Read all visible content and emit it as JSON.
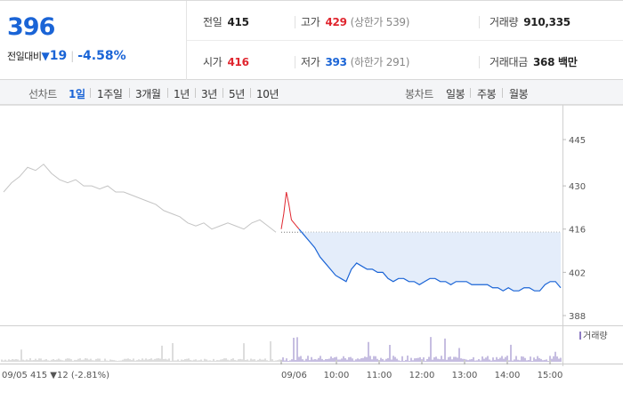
{
  "quote": {
    "price": "396",
    "change_label": "전일대비",
    "change_symbol": "▼",
    "change_amount": "19",
    "change_percent": "-4.58%"
  },
  "info": {
    "prev_label": "전일",
    "prev_value": "415",
    "high_label": "고가",
    "high_value": "429",
    "upper_limit": "(상한가 539)",
    "volume_label": "거래량",
    "volume_value": "910,335",
    "open_label": "시가",
    "open_value": "416",
    "low_label": "저가",
    "low_value": "393",
    "lower_limit": "(하한가 291)",
    "amount_label": "거래대금",
    "amount_value": "368 백만"
  },
  "toolbar": {
    "line_chart_label": "선차트",
    "periods": [
      "1일",
      "1주일",
      "3개월",
      "1년",
      "3년",
      "5년",
      "10년"
    ],
    "active_period": "1일",
    "candle_chart_label": "봉차트",
    "candle_periods": [
      "일봉",
      "주봉",
      "월봉"
    ]
  },
  "colors": {
    "down": "#1a64d6",
    "up": "#e0262f",
    "prev_day_line": "#c4c4c4",
    "fill": "#e4edfa",
    "volume": "#8e7cc3"
  },
  "chart_data": {
    "type": "line",
    "title": "",
    "ylabel": "",
    "ylim": [
      388,
      445
    ],
    "y_ticks": [
      445,
      430,
      416,
      402,
      388
    ],
    "x_tick_labels": [
      "10:00",
      "11:00",
      "12:00",
      "13:00",
      "14:00",
      "15:00"
    ],
    "prev_day": {
      "date_label": "09/05",
      "close_label": "415 ▼12 (-2.81%)",
      "values": [
        428,
        431,
        433,
        436,
        435,
        437,
        434,
        432,
        431,
        432,
        430,
        430,
        429,
        430,
        428,
        428,
        427,
        426,
        425,
        424,
        422,
        421,
        420,
        418,
        417,
        418,
        416,
        417,
        418,
        417,
        416,
        418,
        419,
        417,
        415
      ]
    },
    "today": {
      "date_label": "09/06",
      "prev_close": 415,
      "up_segment": [
        416,
        421,
        428,
        424,
        419,
        418,
        417,
        416
      ],
      "values": [
        416,
        414,
        412,
        410,
        407,
        405,
        403,
        401,
        400,
        399,
        403,
        405,
        404,
        403,
        403,
        402,
        402,
        400,
        399,
        400,
        400,
        399,
        399,
        398,
        399,
        400,
        400,
        399,
        399,
        398,
        399,
        399,
        399,
        398,
        398,
        398,
        398,
        397,
        397,
        396,
        397,
        396,
        396,
        397,
        397,
        396,
        396,
        398,
        399,
        399,
        397
      ]
    },
    "volume_legend": "거래량"
  }
}
